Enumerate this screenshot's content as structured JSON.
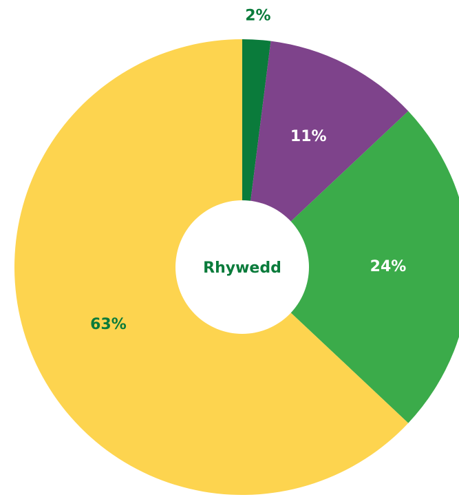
{
  "chart_data": {
    "type": "donut",
    "center_label": "Rhywedd",
    "values": [
      2,
      11,
      24,
      63
    ],
    "value_labels": [
      "2%",
      "11%",
      "24%",
      "63%"
    ],
    "colors": [
      "#0a7b3b",
      "#7e438b",
      "#3bab4a",
      "#fdd44f"
    ],
    "label_colors": [
      "#0a7b3b",
      "#ffffff",
      "#ffffff",
      "#0a7b3b"
    ]
  }
}
